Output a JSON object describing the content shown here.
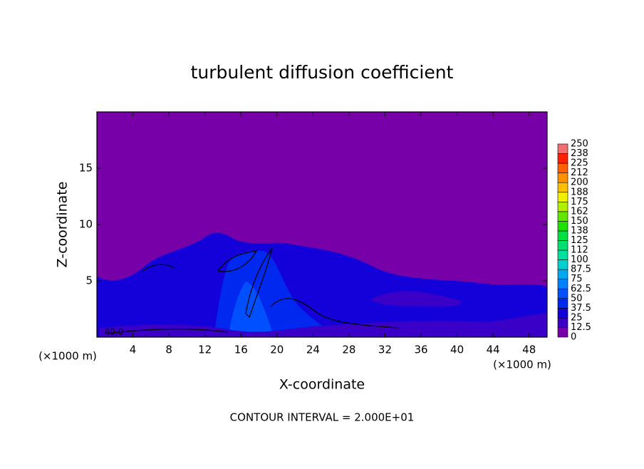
{
  "chart_data": {
    "type": "contour",
    "title": "turbulent diffusion coefficient",
    "xlabel": "X-coordinate",
    "ylabel": "Z-coordinate",
    "x_unit": "(×1000 m)",
    "xlim": [
      0,
      50
    ],
    "xticks": [
      4,
      8,
      12,
      16,
      20,
      24,
      28,
      32,
      36,
      40,
      44,
      48
    ],
    "ylim": [
      0,
      20
    ],
    "yticks": [
      5,
      10,
      15
    ],
    "contour_label": "40.0",
    "footer": "CONTOUR INTERVAL = 2.000E+01",
    "colorbar": {
      "levels": [
        0,
        12.5,
        25,
        37.5,
        50,
        62.5,
        75,
        87.5,
        100,
        {
          "value": 112.5,
          "label": "112"
        },
        125,
        {
          "value": 137.5,
          "label": "138"
        },
        150,
        {
          "value": 162.5,
          "label": "162"
        },
        175,
        {
          "value": 187.5,
          "label": "188"
        },
        200,
        {
          "value": 212.5,
          "label": "212"
        },
        225,
        {
          "value": 237.5,
          "label": "238"
        },
        250
      ],
      "colors": [
        "#7800a8",
        "#3a00c8",
        "#1400d8",
        "#0028ee",
        "#0050ff",
        "#0080ff",
        "#00a8f0",
        "#00d0d0",
        "#00e0a0",
        "#00e070",
        "#00e040",
        "#20e000",
        "#60e800",
        "#b0f000",
        "#f0f000",
        "#ffc000",
        "#ff9000",
        "#ff6000",
        "#ff2000",
        "#f07070"
      ]
    }
  }
}
